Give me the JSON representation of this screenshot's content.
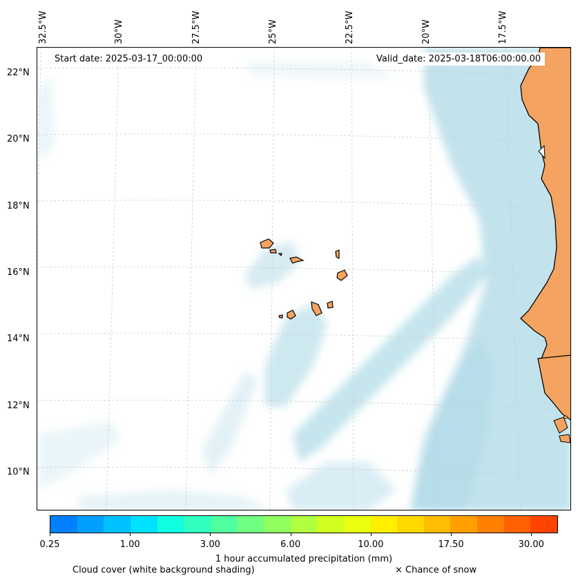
{
  "map": {
    "top_longitude_labels": [
      "32.5°W",
      "30°W",
      "27.5°W",
      "25°W",
      "22.5°W",
      "20°W",
      "17.5°W"
    ],
    "latitude_labels": [
      "22°N",
      "20°N",
      "18°N",
      "16°N",
      "14°N",
      "12°N",
      "10°N"
    ],
    "start_date": "Start date: 2025-03-17_00:00:00",
    "valid_date": "Valid_date: 2025-03-18T06:00:00.00",
    "land_color": "#f4a460",
    "cloud_color": "#add8e6",
    "ocean_color": "#ffffff",
    "gridline_color": "#cccccc"
  },
  "colorbar": {
    "label": "1 hour accumulated precipitation (mm)",
    "tick_labels": [
      "0.25",
      "1.00",
      "3.00",
      "6.00",
      "10.00",
      "17.50",
      "30.00"
    ],
    "colors": [
      "#0080ff",
      "#00a0ff",
      "#00c0ff",
      "#00e0ff",
      "#10ffe0",
      "#30ffc0",
      "#50ffa0",
      "#70ff80",
      "#90ff60",
      "#b0ff40",
      "#d0ff20",
      "#e8ff10",
      "#fff000",
      "#ffd800",
      "#ffbc00",
      "#ffa000",
      "#ff8000",
      "#ff6000",
      "#ff4400"
    ]
  },
  "legend": {
    "cloud_cover": "Cloud cover (white background shading)",
    "snow": "× Chance of snow"
  }
}
